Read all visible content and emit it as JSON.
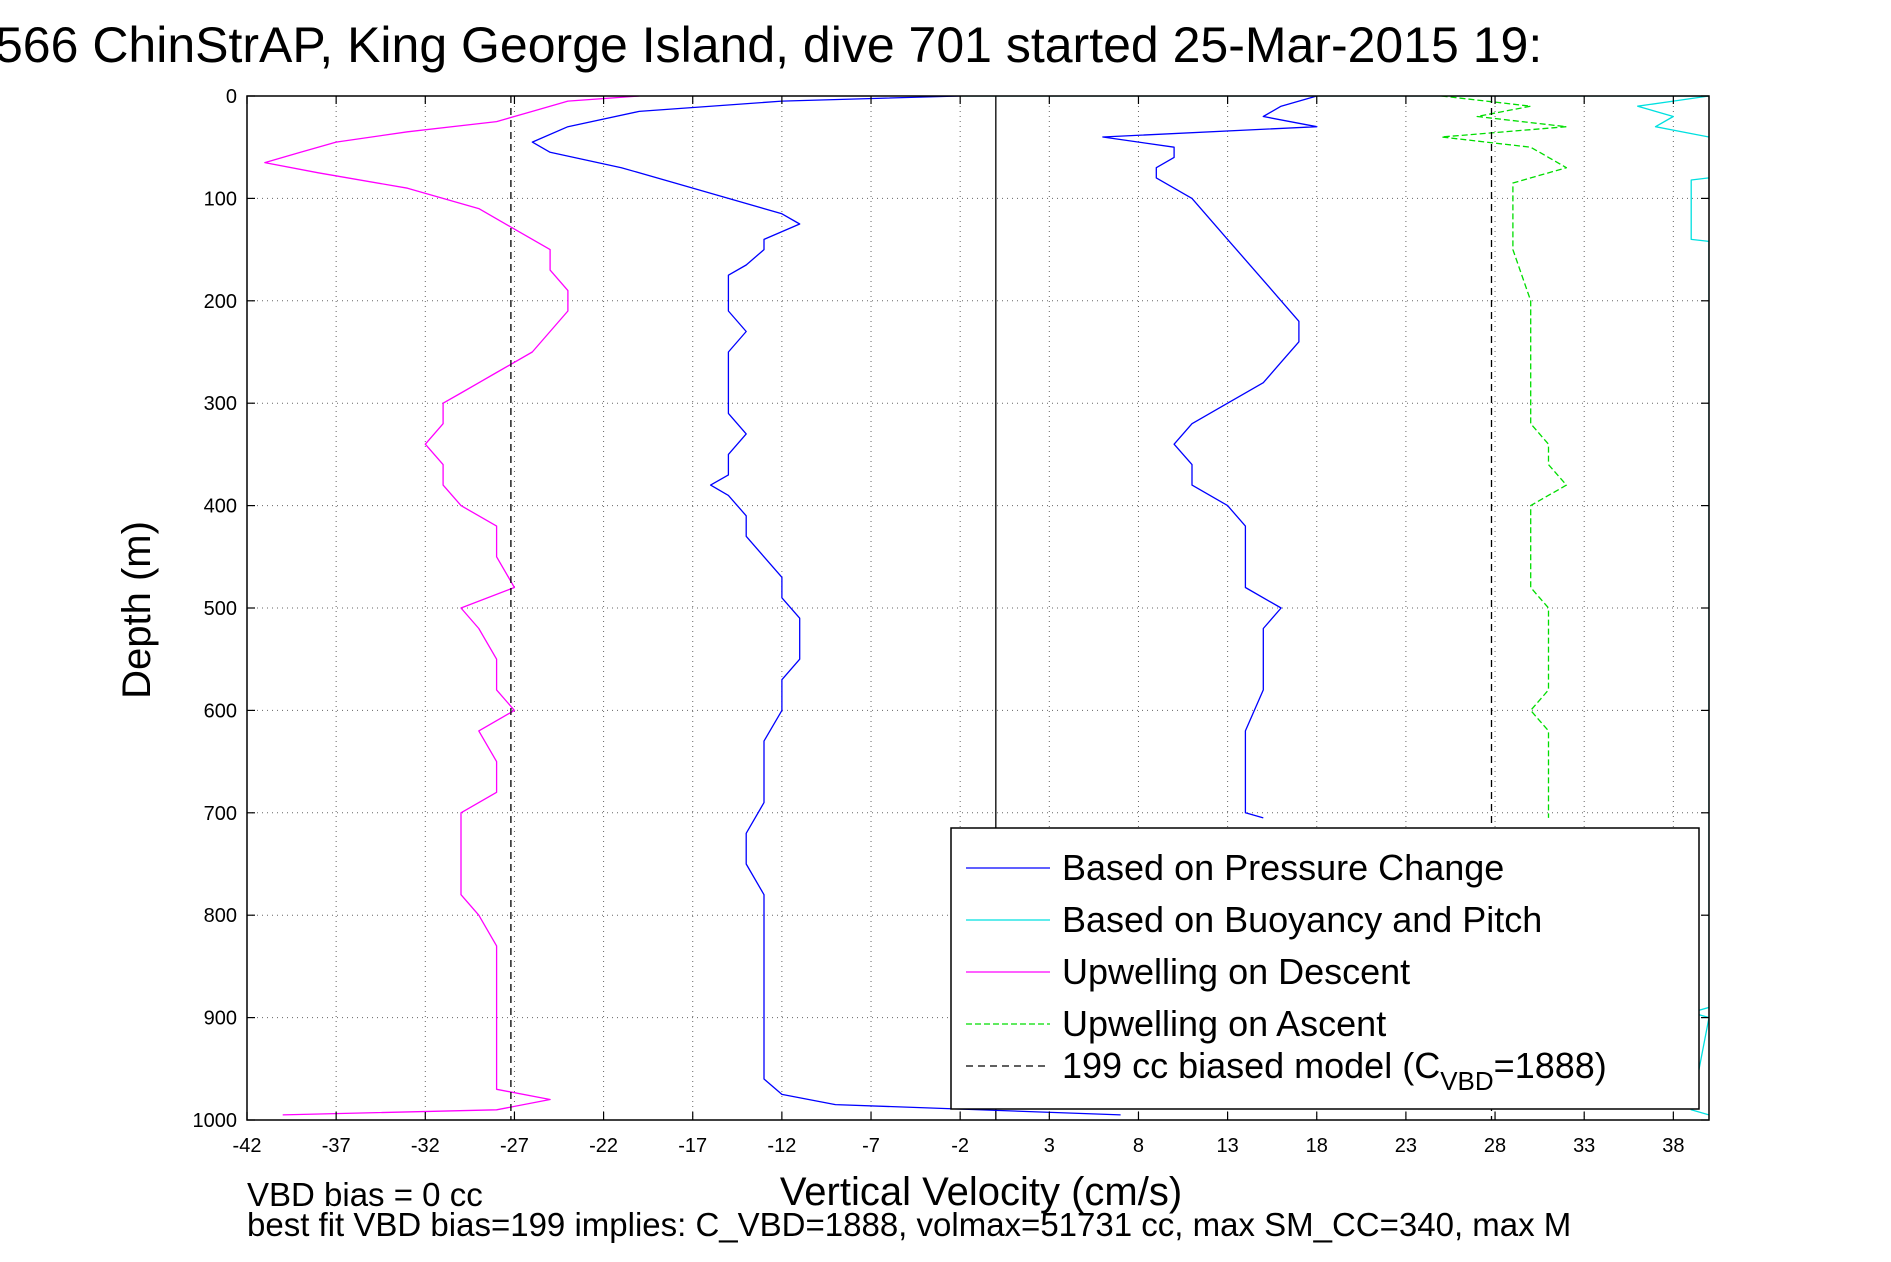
{
  "chart_data": {
    "type": "line",
    "title": "566 ChinStrAP, King George Island, dive 701 started 25-Mar-2015 19:",
    "xlabel": "Vertical Velocity (cm/s)",
    "ylabel": "Depth (m)",
    "xlim": [
      -42,
      40
    ],
    "ylim": [
      1000,
      0
    ],
    "y_reversed": true,
    "grid": true,
    "x_ticks": [
      -42,
      -37,
      -32,
      -27,
      -22,
      -17,
      -12,
      -7,
      -2,
      3,
      8,
      13,
      18,
      23,
      28,
      33,
      38
    ],
    "y_ticks": [
      0,
      100,
      200,
      300,
      400,
      500,
      600,
      700,
      800,
      900,
      1000
    ],
    "legend_position": "lower-right",
    "series": [
      {
        "name": "Based on Pressure Change",
        "color": "#0000ff",
        "style": "solid",
        "profiles": [
          {
            "depth": [
              0,
              5,
              15,
              30,
              45,
              55,
              70,
              85,
              100,
              115,
              125,
              140,
              150,
              165,
              175,
              190,
              210,
              230,
              250,
              270,
              290,
              310,
              330,
              350,
              370,
              380,
              390,
              410,
              430,
              450,
              470,
              490,
              510,
              530,
              550,
              570,
              600,
              630,
              660,
              690,
              720,
              750,
              780,
              810,
              840,
              870,
              900,
              930,
              960,
              975,
              985,
              995
            ],
            "velocity": [
              -2,
              -12,
              -20,
              -24,
              -26,
              -25,
              -21,
              -18,
              -15,
              -12,
              -11,
              -13,
              -13,
              -14,
              -15,
              -15,
              -15,
              -14,
              -15,
              -15,
              -15,
              -15,
              -14,
              -15,
              -15,
              -16,
              -15,
              -14,
              -14,
              -13,
              -12,
              -12,
              -11,
              -11,
              -11,
              -12,
              -12,
              -13,
              -13,
              -13,
              -14,
              -14,
              -13,
              -13,
              -13,
              -13,
              -13,
              -13,
              -13,
              -12,
              -9,
              7
            ]
          },
          {
            "depth": [
              0,
              5,
              10,
              20,
              30,
              40,
              50,
              60,
              70,
              80,
              100,
              120,
              140,
              160,
              180,
              200,
              220,
              240,
              260,
              280,
              300,
              320,
              340,
              360,
              380,
              400,
              420,
              450,
              480,
              500,
              520,
              550,
              580,
              620,
              660,
              690,
              700,
              705
            ],
            "velocity": [
              18,
              17,
              16,
              15,
              18,
              6,
              10,
              10,
              9,
              9,
              11,
              12,
              13,
              14,
              15,
              16,
              17,
              17,
              16,
              15,
              13,
              11,
              10,
              11,
              11,
              13,
              14,
              14,
              14,
              16,
              15,
              15,
              15,
              14,
              14,
              14,
              14,
              15
            ]
          }
        ]
      },
      {
        "name": "Based on Buoyancy and Pitch",
        "color": "#00e0e0",
        "style": "solid",
        "profiles": [
          {
            "depth": [
              0,
              0,
              5,
              10,
              20,
              30,
              40
            ],
            "velocity": [
              -2,
              40,
              38,
              36,
              38,
              37,
              40
            ]
          },
          {
            "depth": [
              80,
              82,
              140,
              142,
              890,
              895,
              900,
              990,
              995
            ],
            "velocity": [
              40,
              39,
              39,
              40,
              40,
              39,
              40,
              39,
              40
            ]
          }
        ]
      },
      {
        "name": "Upwelling on Descent",
        "color": "#ff00ff",
        "style": "solid",
        "profiles": [
          {
            "depth": [
              0,
              5,
              15,
              25,
              35,
              45,
              55,
              65,
              75,
              90,
              110,
              130,
              150,
              170,
              190,
              210,
              230,
              250,
              270,
              290,
              300,
              320,
              340,
              360,
              380,
              400,
              420,
              450,
              480,
              500,
              520,
              550,
              580,
              600,
              620,
              650,
              680,
              700,
              720,
              750,
              780,
              800,
              830,
              860,
              890,
              910,
              930,
              950,
              970,
              980,
              990,
              995
            ],
            "velocity": [
              -20,
              -24,
              -26,
              -28,
              -33,
              -37,
              -39,
              -41,
              -38,
              -33,
              -29,
              -27,
              -25,
              -25,
              -24,
              -24,
              -25,
              -26,
              -28,
              -30,
              -31,
              -31,
              -32,
              -31,
              -31,
              -30,
              -28,
              -28,
              -27,
              -30,
              -29,
              -28,
              -28,
              -27,
              -29,
              -28,
              -28,
              -30,
              -30,
              -30,
              -30,
              -29,
              -28,
              -28,
              -28,
              -28,
              -28,
              -28,
              -28,
              -25,
              -28,
              -40
            ]
          }
        ]
      },
      {
        "name": "Upwelling on Ascent",
        "color": "#00dd00",
        "style": "dashed",
        "profiles": [
          {
            "depth": [
              0,
              10,
              20,
              30,
              40,
              50,
              60,
              70,
              85,
              100,
              120,
              150,
              200,
              250,
              300,
              320,
              340,
              360,
              380,
              400,
              420,
              450,
              480,
              500,
              520,
              550,
              580,
              600,
              620,
              650,
              680,
              705
            ],
            "velocity": [
              25,
              30,
              27,
              32,
              25,
              30,
              31,
              32,
              29,
              29,
              29,
              29,
              30,
              30,
              30,
              30,
              31,
              31,
              32,
              30,
              30,
              30,
              30,
              31,
              31,
              31,
              31,
              30,
              31,
              31,
              31,
              31
            ]
          }
        ]
      },
      {
        "name": "199 cc biased model (C_VBD=1888)",
        "legend_label": "199 cc biased model (C",
        "legend_subscript": "VBD",
        "legend_suffix": "=1888)",
        "color": "#000000",
        "style": "dashed",
        "profiles": [
          {
            "depth": [
              0,
              1000
            ],
            "velocity": [
              -27.2,
              -27.2
            ]
          },
          {
            "depth": [
              0,
              1000
            ],
            "velocity": [
              27.8,
              27.8
            ]
          }
        ]
      }
    ],
    "reference_lines": [
      {
        "velocity": 0,
        "color": "#000000",
        "style": "solid"
      }
    ]
  },
  "notes": {
    "line1": "VBD bias = 0 cc",
    "line2": "best fit VBD bias=199 implies: C_VBD=1888, volmax=51731 cc, max SM_CC=340, max M"
  }
}
